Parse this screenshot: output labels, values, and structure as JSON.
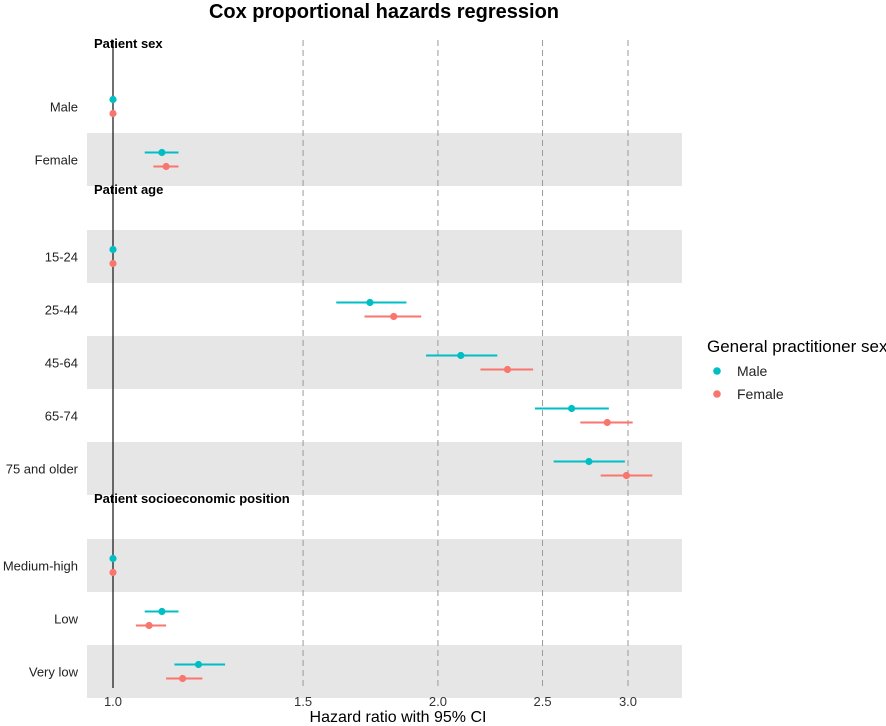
{
  "chart_data": {
    "type": "forest",
    "title": "Cox proportional hazards regression",
    "xlabel": "Hazard ratio with 95% CI",
    "x_scale": "log",
    "xlim": [
      0.97,
      3.22
    ],
    "x_ticks": [
      1.0,
      1.5,
      2.0,
      2.5,
      3.0
    ],
    "x_tick_labels": [
      "1.0",
      "1.5",
      "2.0",
      "2.5",
      "3.0"
    ],
    "reference_line": 1.0,
    "series": [
      {
        "name": "Male",
        "color": "#00BFC4"
      },
      {
        "name": "Female",
        "color": "#F8766D"
      }
    ],
    "legend": {
      "title": "General practitioner sex",
      "entries": [
        "Male",
        "Female"
      ],
      "position": "right"
    },
    "groups": [
      {
        "label": "Patient sex",
        "rows": [
          {
            "label": "Male",
            "shaded": false,
            "estimates": [
              {
                "series": "Male",
                "hr": 1.0,
                "lo": 1.0,
                "hi": 1.0
              },
              {
                "series": "Female",
                "hr": 1.0,
                "lo": 1.0,
                "hi": 1.0
              }
            ]
          },
          {
            "label": "Female",
            "shaded": true,
            "estimates": [
              {
                "series": "Male",
                "hr": 1.11,
                "lo": 1.07,
                "hi": 1.15
              },
              {
                "series": "Female",
                "hr": 1.12,
                "lo": 1.09,
                "hi": 1.15
              }
            ]
          }
        ]
      },
      {
        "label": "Patient age",
        "rows": [
          {
            "label": "15-24",
            "shaded": true,
            "estimates": [
              {
                "series": "Male",
                "hr": 1.0,
                "lo": 1.0,
                "hi": 1.0
              },
              {
                "series": "Female",
                "hr": 1.0,
                "lo": 1.0,
                "hi": 1.0
              }
            ]
          },
          {
            "label": "25-44",
            "shaded": false,
            "estimates": [
              {
                "series": "Male",
                "hr": 1.73,
                "lo": 1.61,
                "hi": 1.87
              },
              {
                "series": "Female",
                "hr": 1.82,
                "lo": 1.71,
                "hi": 1.93
              }
            ]
          },
          {
            "label": "45-64",
            "shaded": true,
            "estimates": [
              {
                "series": "Male",
                "hr": 2.1,
                "lo": 1.95,
                "hi": 2.27
              },
              {
                "series": "Female",
                "hr": 2.32,
                "lo": 2.19,
                "hi": 2.45
              }
            ]
          },
          {
            "label": "65-74",
            "shaded": false,
            "estimates": [
              {
                "series": "Male",
                "hr": 2.66,
                "lo": 2.46,
                "hi": 2.88
              },
              {
                "series": "Female",
                "hr": 2.87,
                "lo": 2.71,
                "hi": 3.03
              }
            ]
          },
          {
            "label": "75 and older",
            "shaded": true,
            "estimates": [
              {
                "series": "Male",
                "hr": 2.76,
                "lo": 2.56,
                "hi": 2.98
              },
              {
                "series": "Female",
                "hr": 2.99,
                "lo": 2.83,
                "hi": 3.16
              }
            ]
          }
        ]
      },
      {
        "label": "Patient socioeconomic position",
        "rows": [
          {
            "label": "Medium-high",
            "shaded": true,
            "estimates": [
              {
                "series": "Male",
                "hr": 1.0,
                "lo": 1.0,
                "hi": 1.0
              },
              {
                "series": "Female",
                "hr": 1.0,
                "lo": 1.0,
                "hi": 1.0
              }
            ]
          },
          {
            "label": "Low",
            "shaded": false,
            "estimates": [
              {
                "series": "Male",
                "hr": 1.11,
                "lo": 1.07,
                "hi": 1.15
              },
              {
                "series": "Female",
                "hr": 1.08,
                "lo": 1.05,
                "hi": 1.12
              }
            ]
          },
          {
            "label": "Very low",
            "shaded": true,
            "estimates": [
              {
                "series": "Male",
                "hr": 1.2,
                "lo": 1.14,
                "hi": 1.27
              },
              {
                "series": "Female",
                "hr": 1.16,
                "lo": 1.12,
                "hi": 1.21
              }
            ]
          }
        ]
      }
    ]
  }
}
